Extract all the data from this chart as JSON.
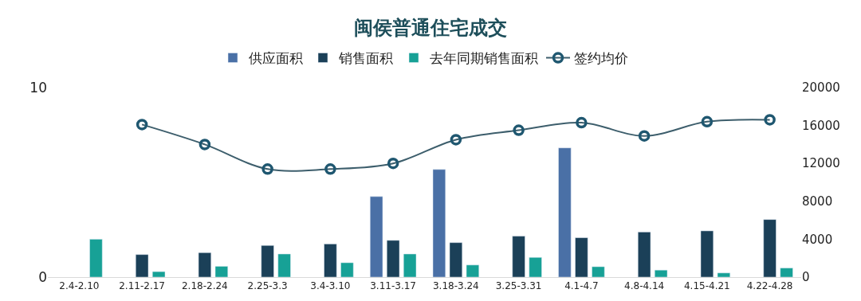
{
  "chart_data": {
    "type": "bar",
    "title": "闽侯普通住宅成交",
    "categories": [
      "2.4-2.10",
      "2.11-2.17",
      "2.18-2.24",
      "2.25-3.3",
      "3.4-3.10",
      "3.11-3.17",
      "3.18-3.24",
      "3.25-3.31",
      "4.1-4.7",
      "4.8-4.14",
      "4.15-4.21",
      "4.22-4.28"
    ],
    "series": [
      {
        "name": "供应面积",
        "color": "#4a70a6",
        "values": [
          null,
          null,
          null,
          null,
          null,
          4.25,
          5.68,
          null,
          6.82,
          null,
          null,
          null
        ]
      },
      {
        "name": "销售面积",
        "color": "#1b4058",
        "values": [
          null,
          1.19,
          1.29,
          1.67,
          1.75,
          1.94,
          1.82,
          2.16,
          2.08,
          2.38,
          2.44,
          3.04
        ]
      },
      {
        "name": "去年同期销售面积",
        "color": "#17a196",
        "values": [
          2.0,
          0.29,
          0.57,
          1.22,
          0.76,
          1.22,
          0.64,
          1.04,
          0.55,
          0.37,
          0.22,
          0.48
        ]
      },
      {
        "name": "签约均价",
        "type": "line",
        "axis": "y2",
        "color": "#3d5e6c",
        "marker": "circle",
        "values": [
          null,
          16100,
          14000,
          11400,
          11400,
          12000,
          14500,
          15500,
          16300,
          14900,
          16400,
          16600
        ]
      }
    ],
    "ylim": [
      0,
      10
    ],
    "yticks": [
      0,
      10
    ],
    "y2lim": [
      0,
      20000
    ],
    "y2ticks": [
      0,
      4000,
      8000,
      12000,
      16000,
      20000
    ],
    "legend": "top"
  }
}
